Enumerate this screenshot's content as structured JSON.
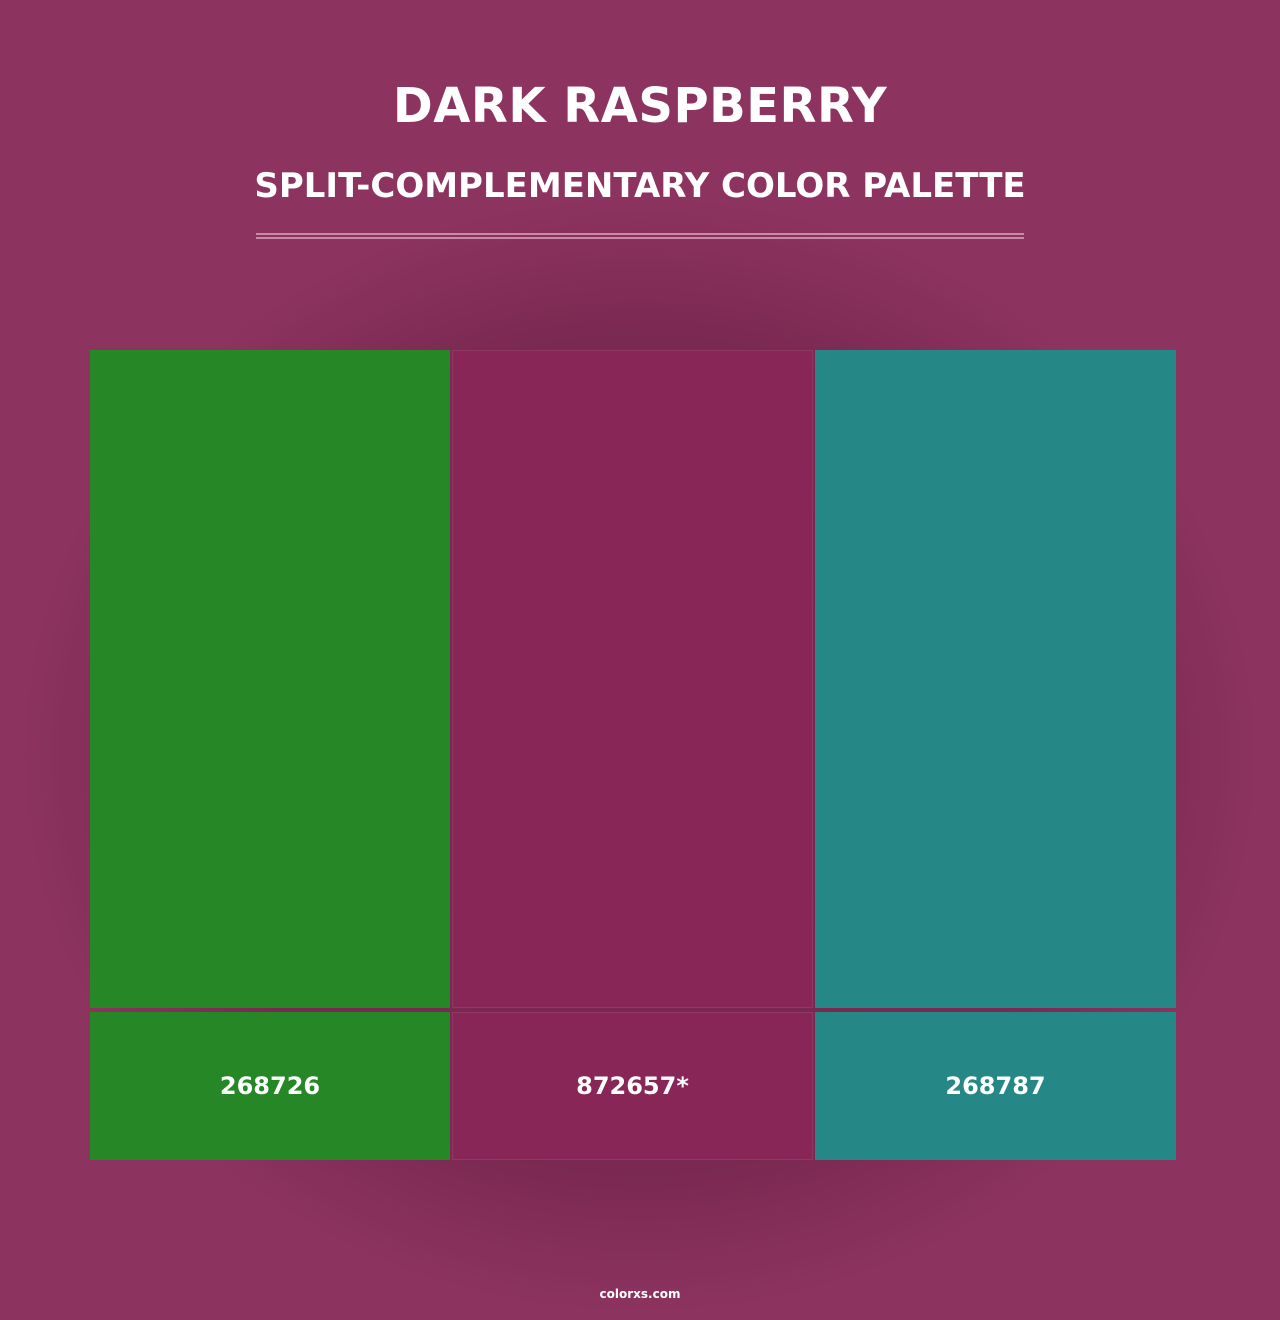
{
  "header": {
    "title": "DARK RASPBERRY",
    "subtitle": "SPLIT-COMPLEMENTARY COLOR PALETTE"
  },
  "swatches": [
    {
      "label": "268726",
      "color": "#268726"
    },
    {
      "label": "872657*",
      "color": "#872657"
    },
    {
      "label": "268787",
      "color": "#268787"
    }
  ],
  "footer": {
    "text": "colorxs.com"
  }
}
